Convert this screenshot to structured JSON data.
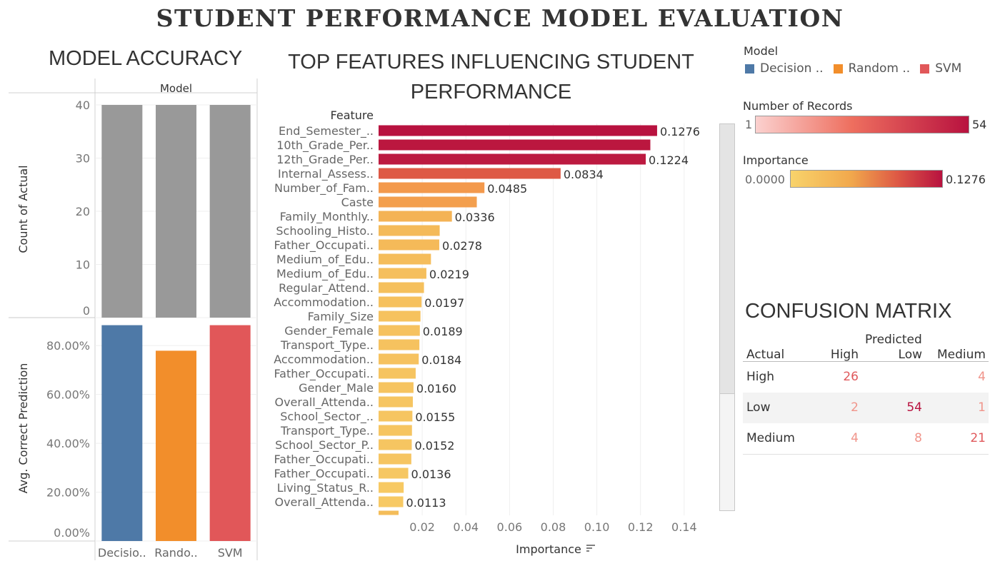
{
  "title": "STUDENT PERFORMANCE MODEL EVALUATION",
  "accuracy": {
    "section_title": "MODEL ACCURACY",
    "header": "Model",
    "models": [
      "Decisio..",
      "Rando..",
      "SVM"
    ],
    "colors": [
      "#4e79a7",
      "#f28e2b",
      "#e15759"
    ],
    "bar_gray": "#999999",
    "count": {
      "label": "Count of Actual",
      "values": [
        40,
        40,
        40
      ],
      "ticks": [
        "40",
        "30",
        "20",
        "10",
        "0"
      ],
      "tick_values": [
        40,
        30,
        20,
        10,
        0
      ],
      "ylim": [
        0,
        40
      ]
    },
    "prediction": {
      "label": "Avg. Correct Prediction",
      "values": [
        0.8837,
        0.7791,
        0.8837
      ],
      "ticks": [
        "80.00%",
        "60.00%",
        "40.00%",
        "20.00%",
        "0.00%"
      ],
      "tick_values": [
        0.8,
        0.6,
        0.4,
        0.2,
        0
      ],
      "ylim": [
        0,
        0.9
      ]
    }
  },
  "features": {
    "section_title_line1": "TOP FEATURES INFLUENCING STUDENT",
    "section_title_line2": "PERFORMANCE",
    "col_header": "Feature",
    "xlabel": "Importance",
    "sort_icon": "sort-descending-icon",
    "x_ticks": [
      "0.02",
      "0.04",
      "0.06",
      "0.08",
      "0.10",
      "0.12",
      "0.14"
    ],
    "x_tick_values": [
      0.02,
      0.04,
      0.06,
      0.08,
      0.1,
      0.12,
      0.14
    ],
    "xlim": [
      0,
      0.15
    ]
  },
  "chart_data": {
    "type": "bar",
    "orientation": "horizontal",
    "categories": [
      "End_Semester_..",
      "10th_Grade_Per..",
      "12th_Grade_Per..",
      "Internal_Assess..",
      "Number_of_Fam..",
      "Caste",
      "Family_Monthly..",
      "Schooling_Histo..",
      "Father_Occupati..",
      "Medium_of_Edu..",
      "Medium_of_Edu..",
      "Regular_Attend..",
      "Accommodation..",
      "Family_Size",
      "Gender_Female",
      "Transport_Type..",
      "Accommodation..",
      "Father_Occupati..",
      "Gender_Male",
      "Overall_Attenda..",
      "School_Sector_..",
      "Transport_Type..",
      "School_Sector_P..",
      "Father_Occupati..",
      "Father_Occupati..",
      "Living_Status_R..",
      "Overall_Attenda.."
    ],
    "values": [
      0.1276,
      0.1245,
      0.1224,
      0.0834,
      0.0485,
      0.045,
      0.0336,
      0.028,
      0.0278,
      0.024,
      0.0219,
      0.0208,
      0.0197,
      0.0192,
      0.0189,
      0.0187,
      0.0184,
      0.017,
      0.016,
      0.0157,
      0.0155,
      0.0153,
      0.0152,
      0.015,
      0.0136,
      0.0115,
      0.0113
    ],
    "labels": [
      "0.1276",
      "",
      "0.1224",
      "0.0834",
      "0.0485",
      "",
      "0.0336",
      "",
      "0.0278",
      "",
      "0.0219",
      "",
      "0.0197",
      "",
      "0.0189",
      "",
      "0.0184",
      "",
      "0.0160",
      "",
      "0.0155",
      "",
      "0.0152",
      "",
      "0.0136",
      "",
      "0.0113"
    ],
    "xlabel": "Importance",
    "ylabel": "Feature",
    "xlim": [
      0,
      0.15
    ]
  },
  "legend": {
    "model_title": "Model",
    "models": [
      "Decision ..",
      "Random ..",
      "SVM"
    ],
    "model_colors": [
      "#4e79a7",
      "#f28e2b",
      "#e15759"
    ],
    "records_title": "Number of Records",
    "records_min": "1",
    "records_max": "54",
    "importance_title": "Importance",
    "importance_min": "0.0000",
    "importance_max": "0.1276"
  },
  "confusion": {
    "title": "CONFUSION MATRIX",
    "predicted_label": "Predicted",
    "actual_label": "Actual",
    "columns": [
      "High",
      "Low",
      "Medium"
    ],
    "rows": [
      {
        "label": "High",
        "cells": [
          "26",
          "",
          "4"
        ],
        "values": [
          26,
          null,
          4
        ]
      },
      {
        "label": "Low",
        "cells": [
          "2",
          "54",
          "1"
        ],
        "values": [
          2,
          54,
          1
        ]
      },
      {
        "label": "Medium",
        "cells": [
          "4",
          "8",
          "21"
        ],
        "values": [
          4,
          8,
          21
        ]
      }
    ]
  }
}
